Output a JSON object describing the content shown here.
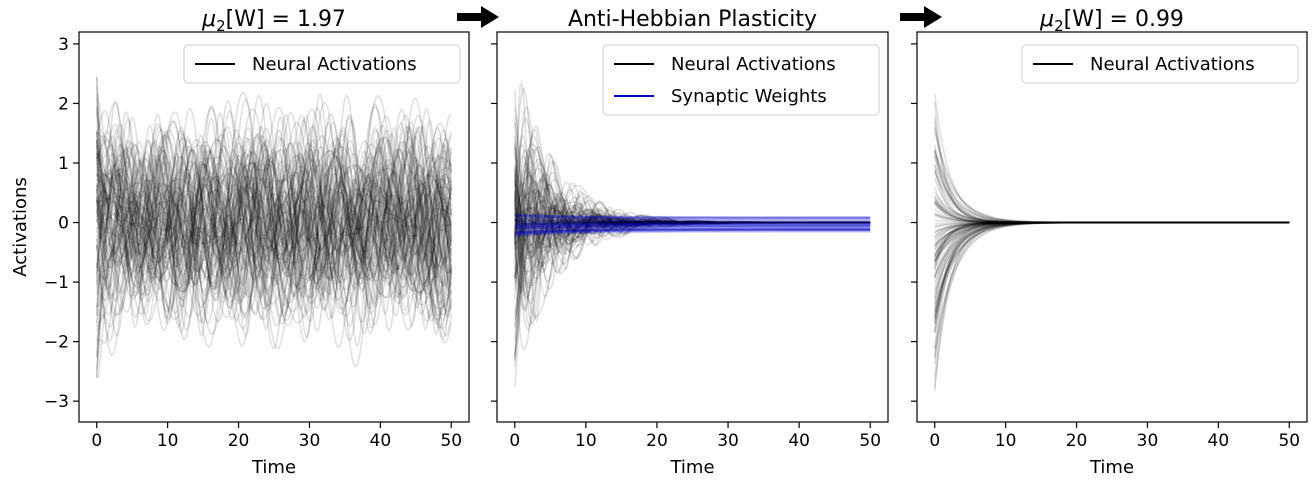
{
  "figure": {
    "arrow_color": "#000000",
    "neural_color": "#000000",
    "weight_color": "#0000cc"
  },
  "chart_data": [
    {
      "type": "line",
      "title_prefix": "μ",
      "title_subscript": "2",
      "title_suffix": "[W] = 1.97",
      "xlabel": "Time",
      "ylabel": "Activations",
      "xlim": [
        -2.5,
        52.5
      ],
      "ylim": [
        -3.35,
        3.2
      ],
      "xticks": [
        0,
        10,
        20,
        30,
        40,
        50
      ],
      "yticks": [
        -3,
        -2,
        -1,
        0,
        1,
        2,
        3
      ],
      "ytick_labels": [
        "−3",
        "−2",
        "−1",
        "0",
        "1",
        "2",
        "3"
      ],
      "legend_position": "top-right",
      "legend": [
        "Neural Activations"
      ],
      "series": [
        {
          "kind": "neural",
          "count": 100,
          "behavior": "sustained oscillation",
          "initial_range": [
            -3.05,
            2.75
          ],
          "amplitude_range": [
            -2.6,
            2.45
          ]
        }
      ]
    },
    {
      "type": "line",
      "title": "Anti-Hebbian Plasticity",
      "xlabel": "Time",
      "xlim": [
        -2.5,
        52.5
      ],
      "ylim": [
        -3.35,
        3.2
      ],
      "xticks": [
        0,
        10,
        20,
        30,
        40,
        50
      ],
      "legend_position": "top-right",
      "legend": [
        "Neural Activations",
        "Synaptic Weights"
      ],
      "series": [
        {
          "kind": "neural",
          "count": 100,
          "behavior": "damped oscillation to 0 by t≈20",
          "initial_range": [
            -2.95,
            2.9
          ]
        },
        {
          "kind": "weights",
          "count": 30,
          "behavior": "flat band",
          "band": [
            -0.25,
            0.15
          ]
        }
      ]
    },
    {
      "type": "line",
      "title_prefix": "μ",
      "title_subscript": "2",
      "title_suffix": "[W] = 0.99",
      "xlabel": "Time",
      "xlim": [
        -2.5,
        52.5
      ],
      "ylim": [
        -3.35,
        3.2
      ],
      "xticks": [
        0,
        10,
        20,
        30,
        40,
        50
      ],
      "legend_position": "top-right",
      "legend": [
        "Neural Activations"
      ],
      "series": [
        {
          "kind": "neural",
          "count": 100,
          "behavior": "fast exponential decay to 0",
          "initial_range": [
            -2.9,
            2.2
          ]
        }
      ]
    }
  ]
}
